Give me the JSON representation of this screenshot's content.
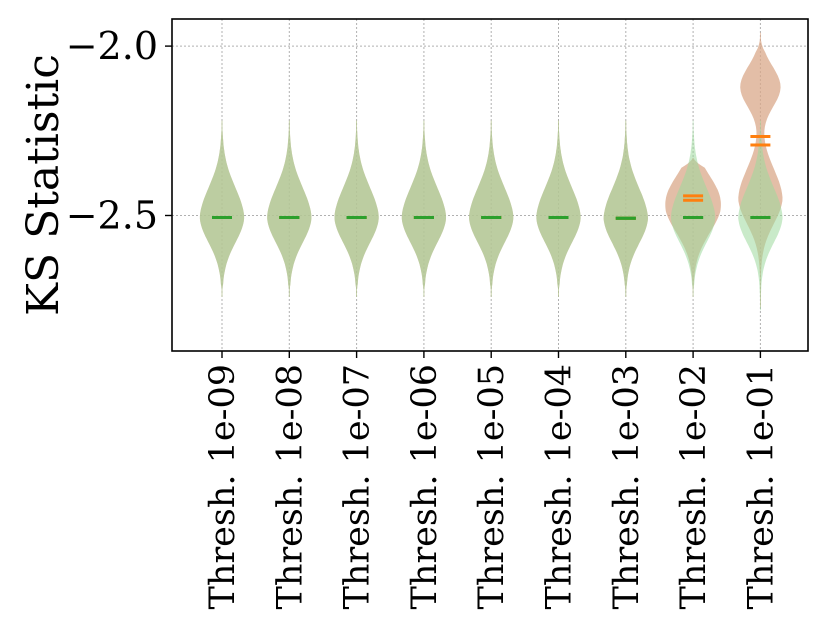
{
  "chart_data": {
    "type": "violin",
    "ylabel": "KS Statistic",
    "ylim": [
      -2.9,
      -1.92
    ],
    "yticks": [
      {
        "value": -2.0,
        "label": "−2.0"
      },
      {
        "value": -2.5,
        "label": "−2.5"
      }
    ],
    "categories": [
      "Thresh. 1e-09",
      "Thresh. 1e-08",
      "Thresh. 1e-07",
      "Thresh. 1e-06",
      "Thresh. 1e-05",
      "Thresh. 1e-04",
      "Thresh. 1e-03",
      "Thresh. 1e-02",
      "Thresh. 1e-01"
    ],
    "grid": true,
    "series": [
      {
        "color": "#ff7f0e",
        "fill": "#d9a88a",
        "medians": [
          -2.506,
          -2.506,
          -2.506,
          -2.506,
          -2.506,
          -2.506,
          -2.508,
          -2.455,
          -2.292
        ],
        "means": [
          -2.506,
          -2.506,
          -2.506,
          -2.506,
          -2.506,
          -2.506,
          -2.508,
          -2.442,
          -2.267
        ],
        "bottoms": [
          -2.74,
          -2.74,
          -2.74,
          -2.74,
          -2.74,
          -2.74,
          -2.74,
          -2.74,
          -2.77
        ],
        "tops": [
          -2.22,
          -2.22,
          -2.22,
          -2.22,
          -2.22,
          -2.22,
          -2.22,
          -2.33,
          -1.96
        ]
      },
      {
        "color": "#2ca02c",
        "fill": "#9dd89d",
        "medians": [
          -2.506,
          -2.506,
          -2.506,
          -2.506,
          -2.506,
          -2.506,
          -2.508,
          -2.506,
          -2.506
        ],
        "means": [
          -2.506,
          -2.506,
          -2.506,
          -2.506,
          -2.506,
          -2.506,
          -2.508,
          -2.506,
          -2.506
        ],
        "bottoms": [
          -2.74,
          -2.74,
          -2.74,
          -2.74,
          -2.74,
          -2.74,
          -2.74,
          -2.74,
          -2.78
        ],
        "tops": [
          -2.22,
          -2.22,
          -2.22,
          -2.22,
          -2.22,
          -2.22,
          -2.22,
          -2.22,
          -2.22
        ]
      }
    ]
  }
}
